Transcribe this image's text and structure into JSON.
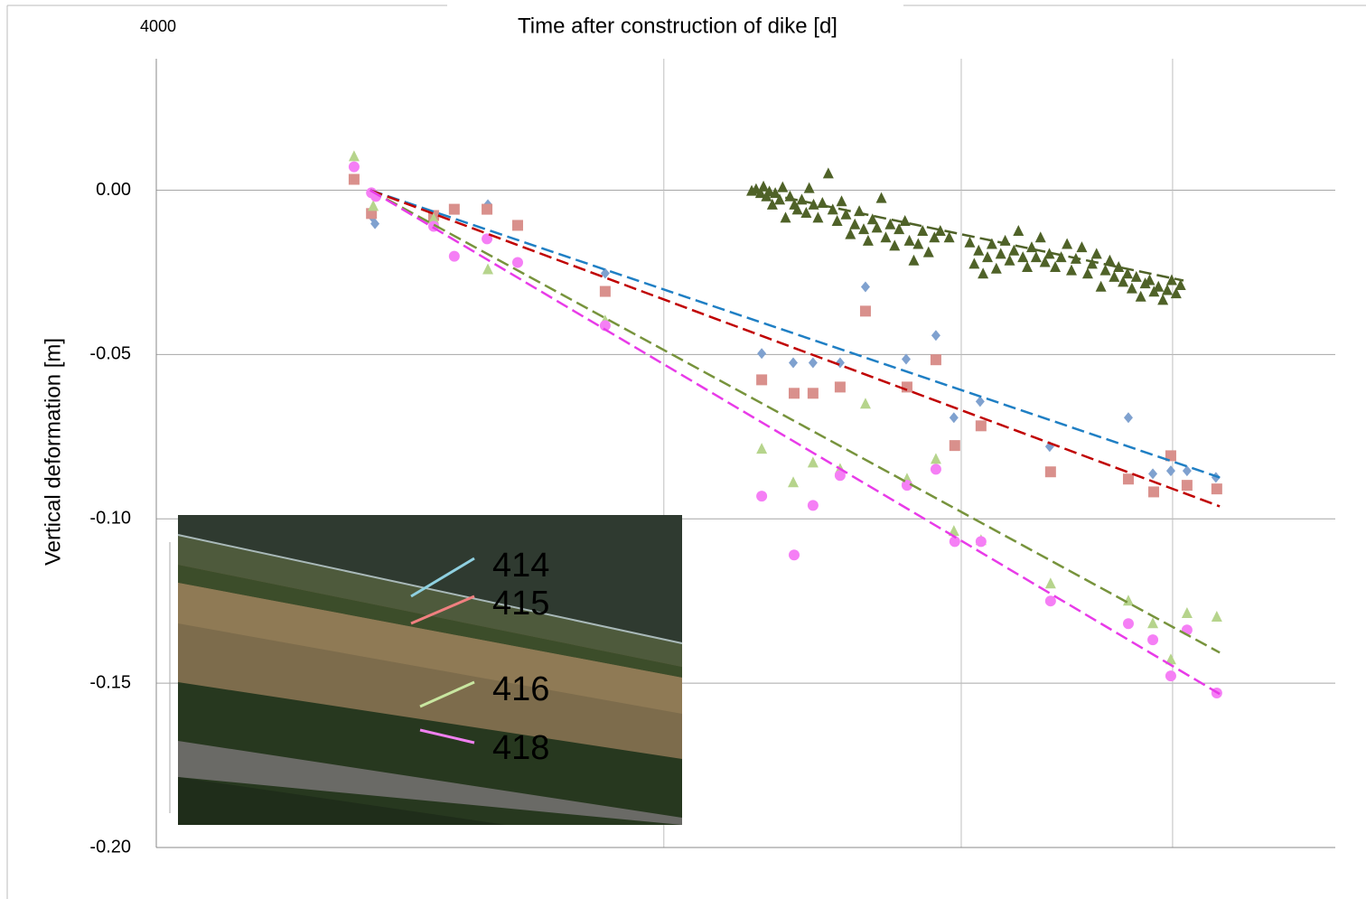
{
  "chart_data": {
    "type": "scatter",
    "x_label": "Time after construction of dike [d]",
    "y_label": "Vertical deformation [m]",
    "annotations": [
      {
        "text": "4000"
      }
    ],
    "xlim": [
      0,
      4000
    ],
    "ylim": [
      -0.2,
      0.04
    ],
    "yticks": [
      {
        "value": 0,
        "label": "0.00"
      },
      {
        "value": -0.05,
        "label": "-0.05"
      },
      {
        "value": -0.1,
        "label": "-0.10"
      },
      {
        "value": -0.15,
        "label": "-0.15"
      },
      {
        "value": -0.2,
        "label": "-0.20"
      }
    ],
    "x_gridlines": [
      1722,
      2731,
      3448
    ],
    "grid": true,
    "series": [
      {
        "name": "414",
        "color": "#7fa1cf",
        "legend_color": "#8fd0e0",
        "marker": "diamond",
        "x": [
          671,
          733,
          742,
          1125,
          1523,
          2054,
          2161,
          2228,
          2320,
          2406,
          2544,
          2645,
          2706,
          2795,
          3031,
          3298,
          3381,
          3442,
          3497,
          3595
        ],
        "values": [
          0.0033,
          -0.0082,
          -0.0102,
          -0.0044,
          -0.0253,
          -0.0497,
          -0.0525,
          -0.0525,
          -0.0525,
          -0.0294,
          -0.0514,
          -0.0442,
          -0.0692,
          -0.0643,
          -0.078,
          -0.0692,
          -0.0863,
          -0.0854,
          -0.0854,
          -0.0874
        ],
        "trend": {
          "color": "#1f7fc4",
          "x": [
            726,
            3608
          ],
          "y": [
            0,
            -0.0874
          ]
        }
      },
      {
        "name": "415",
        "color": "#d9908c",
        "legend_color": "#f08080",
        "marker": "square",
        "x": [
          671,
          730,
          941,
          1011,
          1122,
          1226,
          1523,
          2054,
          2164,
          2228,
          2320,
          2406,
          2547,
          2645,
          2709,
          2798,
          3034,
          3298,
          3384,
          3442,
          3497,
          3598
        ],
        "values": [
          0.0033,
          -0.0071,
          -0.0077,
          -0.0058,
          -0.0058,
          -0.0107,
          -0.0308,
          -0.0577,
          -0.0618,
          -0.0618,
          -0.0599,
          -0.0368,
          -0.0599,
          -0.0516,
          -0.0777,
          -0.0717,
          -0.0857,
          -0.0879,
          -0.0918,
          -0.0808,
          -0.0898,
          -0.0909
        ],
        "trend": {
          "color": "#c00000",
          "x": [
            726,
            3608
          ],
          "y": [
            0,
            -0.0962
          ]
        }
      },
      {
        "name": "416",
        "color": "#b6d48c",
        "legend_color": "#c8e6a0",
        "marker": "triangle",
        "x": [
          671,
          736,
          941,
          1125,
          1523,
          2054,
          2161,
          2228,
          2320,
          2406,
          2547,
          2645,
          2706,
          2798,
          3034,
          3298,
          3381,
          3442,
          3497,
          3598
        ],
        "values": [
          0.0102,
          -0.0049,
          -0.0088,
          -0.0242,
          -0.0398,
          -0.0788,
          -0.089,
          -0.083,
          -0.0849,
          -0.0651,
          -0.0879,
          -0.0819,
          -0.1038,
          -0.1066,
          -0.1198,
          -0.125,
          -0.1319,
          -0.1429,
          -0.1288,
          -0.1299
        ],
        "trend": {
          "color": "#77933c",
          "x": [
            726,
            3608
          ],
          "y": [
            0,
            -0.1407
          ]
        }
      },
      {
        "name": "418",
        "color": "#f57ff5",
        "legend_color": "#f080f0",
        "marker": "circle",
        "x": [
          671,
          730,
          745,
          941,
          1011,
          1122,
          1226,
          1523,
          2054,
          2164,
          2228,
          2320,
          2547,
          2645,
          2709,
          2798,
          3034,
          3298,
          3381,
          3442,
          3497,
          3598
        ],
        "values": [
          0.0071,
          -0.0008,
          -0.0019,
          -0.011,
          -0.0201,
          -0.0148,
          -0.022,
          -0.0412,
          -0.0931,
          -0.111,
          -0.0959,
          -0.0868,
          -0.0898,
          -0.0849,
          -0.1069,
          -0.1069,
          -0.125,
          -0.1319,
          -0.1368,
          -0.1478,
          -0.1338,
          -0.153
        ],
        "trend": {
          "color": "#e83be8",
          "x": [
            726,
            3608
          ],
          "y": [
            0,
            -0.1533
          ]
        }
      },
      {
        "color": "#4f6228",
        "marker": "triangle",
        "x": [
          2020,
          2035,
          2050,
          2060,
          2070,
          2080,
          2090,
          2100,
          2115,
          2125,
          2135,
          2150,
          2165,
          2175,
          2190,
          2205,
          2215,
          2230,
          2245,
          2260,
          2280,
          2295,
          2310,
          2325,
          2340,
          2355,
          2370,
          2385,
          2400,
          2415,
          2430,
          2445,
          2460,
          2475,
          2490,
          2505,
          2520,
          2540,
          2555,
          2570,
          2585,
          2600,
          2620,
          2640,
          2660,
          2690,
          2760,
          2775,
          2790,
          2805,
          2820,
          2835,
          2850,
          2865,
          2880,
          2895,
          2910,
          2925,
          2940,
          2955,
          2970,
          2985,
          3000,
          3015,
          3030,
          3050,
          3070,
          3090,
          3105,
          3120,
          3140,
          3160,
          3175,
          3190,
          3205,
          3220,
          3235,
          3250,
          3265,
          3280,
          3295,
          3310,
          3325,
          3340,
          3355,
          3370,
          3385,
          3400,
          3415,
          3430,
          3445,
          3460,
          3475
        ],
        "values": [
          -0.0003,
          0.0002,
          -0.001,
          0.001,
          -0.002,
          -0.0005,
          -0.0045,
          -0.001,
          -0.003,
          0.0008,
          -0.0085,
          -0.002,
          -0.0045,
          -0.006,
          -0.003,
          -0.007,
          0.0005,
          -0.0045,
          -0.0085,
          -0.004,
          0.005,
          -0.006,
          -0.0095,
          -0.0035,
          -0.0075,
          -0.0135,
          -0.0105,
          -0.0065,
          -0.012,
          -0.0155,
          -0.009,
          -0.0115,
          -0.0025,
          -0.0145,
          -0.0105,
          -0.017,
          -0.012,
          -0.0095,
          -0.0155,
          -0.0215,
          -0.0165,
          -0.0125,
          -0.019,
          -0.0145,
          -0.0125,
          -0.0145,
          -0.016,
          -0.0225,
          -0.0185,
          -0.0255,
          -0.0205,
          -0.0165,
          -0.024,
          -0.0195,
          -0.0155,
          -0.0215,
          -0.0185,
          -0.0125,
          -0.0205,
          -0.0235,
          -0.0175,
          -0.0205,
          -0.0145,
          -0.022,
          -0.0195,
          -0.0235,
          -0.0205,
          -0.0165,
          -0.0245,
          -0.021,
          -0.0175,
          -0.0255,
          -0.0225,
          -0.0195,
          -0.0295,
          -0.0245,
          -0.0215,
          -0.0265,
          -0.0235,
          -0.028,
          -0.0255,
          -0.03,
          -0.0265,
          -0.0325,
          -0.0285,
          -0.0275,
          -0.031,
          -0.0295,
          -0.0335,
          -0.0305,
          -0.0275,
          -0.0315,
          -0.029
        ],
        "trend": {
          "color": "#4f6228",
          "x": [
            2014,
            3485
          ],
          "y": [
            0,
            -0.0275
          ]
        }
      }
    ]
  }
}
